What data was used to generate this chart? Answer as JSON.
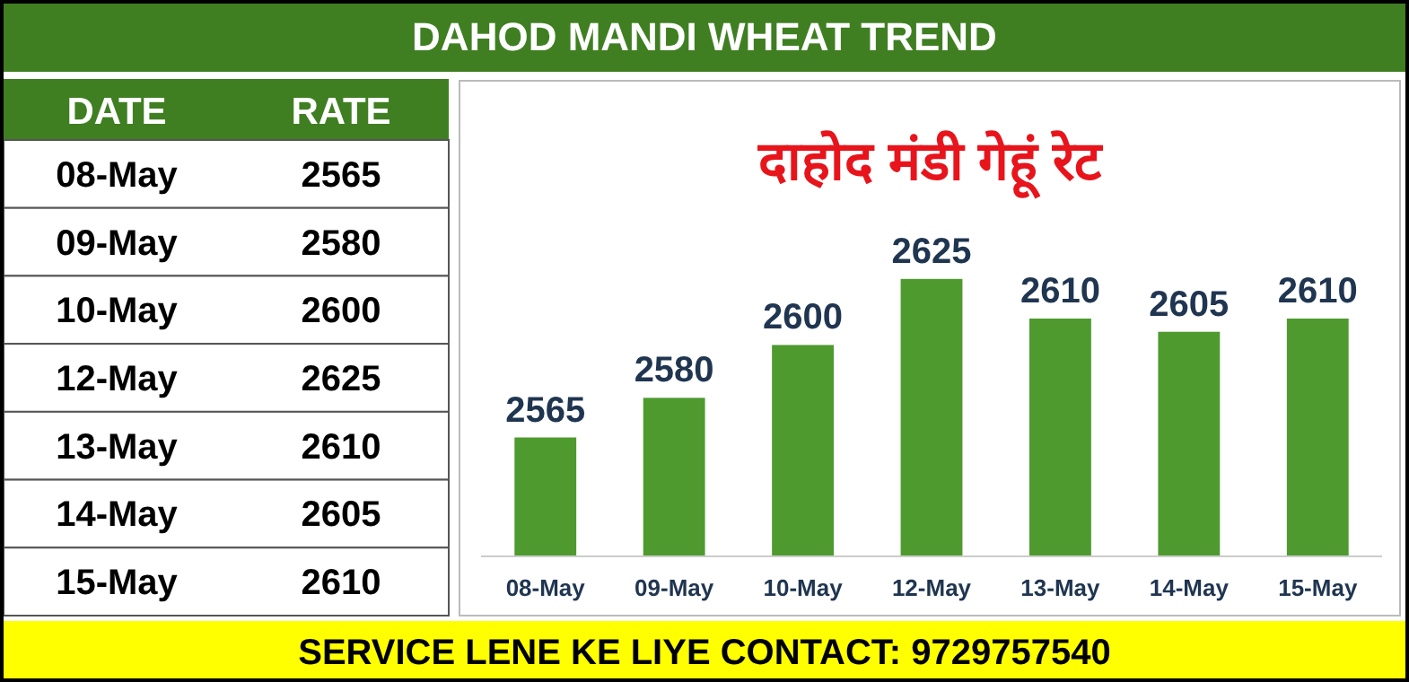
{
  "chart_data": [
    {
      "type": "other",
      "annotations": [
        "DATE",
        "RATE"
      ],
      "categories": [
        "08-May",
        "09-May",
        "10-May",
        "12-May",
        "13-May",
        "14-May",
        "15-May"
      ],
      "values": [
        2565,
        2580,
        2600,
        2625,
        2610,
        2605,
        2610
      ],
      "data_labels": true
    },
    {
      "type": "bar",
      "title": "DAHOD MANDI WHEAT TREND",
      "subtitle": "दाहोद मंडी गेहूं रेट",
      "categories": [
        "08-May",
        "09-May",
        "10-May",
        "12-May",
        "13-May",
        "14-May",
        "15-May"
      ],
      "values": [
        2565,
        2580,
        2600,
        2625,
        2610,
        2605,
        2610
      ],
      "color": "#4e9a2f",
      "ylim": [
        2520,
        2700
      ],
      "tick_labels": "x",
      "data_labels": true,
      "annotations": [
        "SERVICE LENE KE LIYE CONTACT: 9729757540"
      ]
    }
  ]
}
